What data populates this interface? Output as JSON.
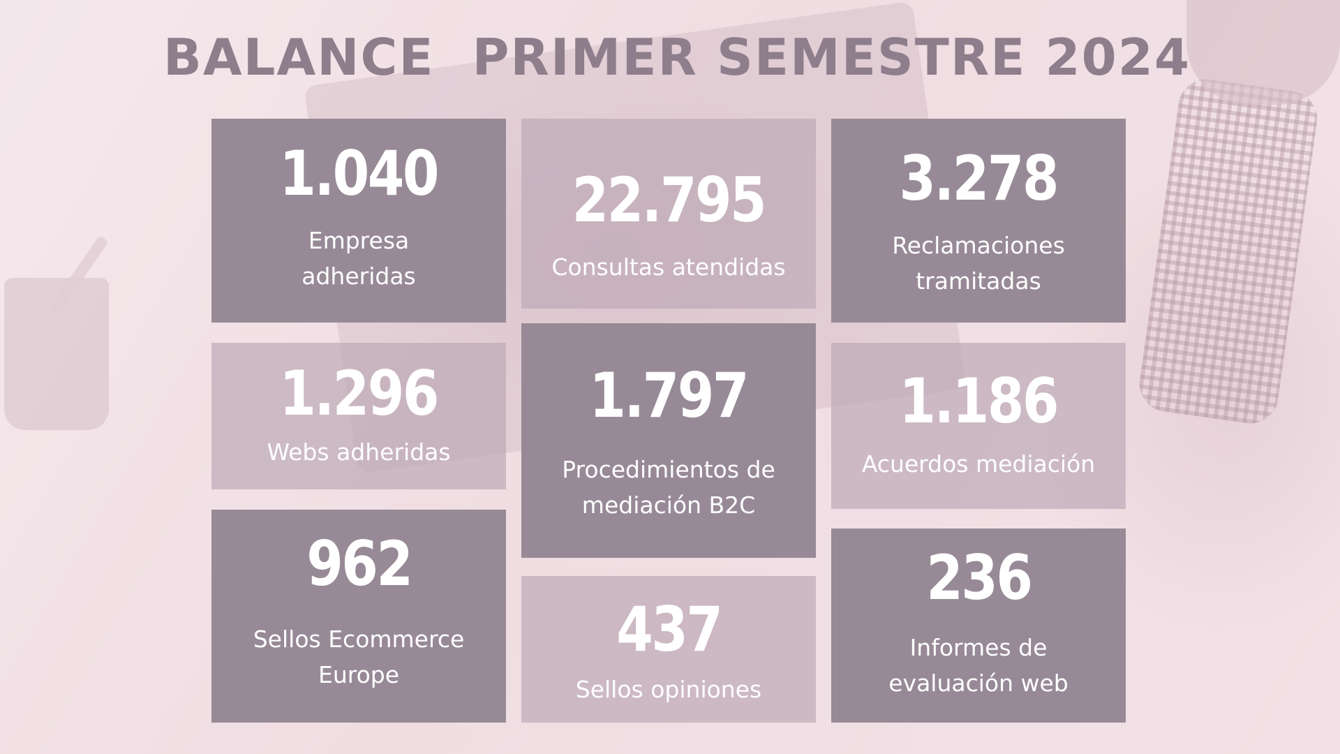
{
  "title": "BALANCE  PRIMER SEMESTRE 2024",
  "colors": {
    "title": "#8e7e8c",
    "card_dark": "#978a96",
    "card_light": "#beaab7",
    "text": "#ffffff",
    "background": "#f3e4e8"
  },
  "stats": [
    {
      "value": "1.040",
      "label": "Empresa\nadheridas"
    },
    {
      "value": "22.795",
      "label": "Consultas atendidas"
    },
    {
      "value": "3.278",
      "label": "Reclamaciones\ntramitadas"
    },
    {
      "value": "1.296",
      "label": "Webs adheridas"
    },
    {
      "value": "1.797",
      "label": "Procedimientos de\nmediación B2C"
    },
    {
      "value": "1.186",
      "label": "Acuerdos mediación"
    },
    {
      "value": "962",
      "label": "Sellos Ecommerce\nEurope"
    },
    {
      "value": "437",
      "label": "Sellos opiniones"
    },
    {
      "value": "236",
      "label": "Informes de\nevaluación web"
    }
  ]
}
